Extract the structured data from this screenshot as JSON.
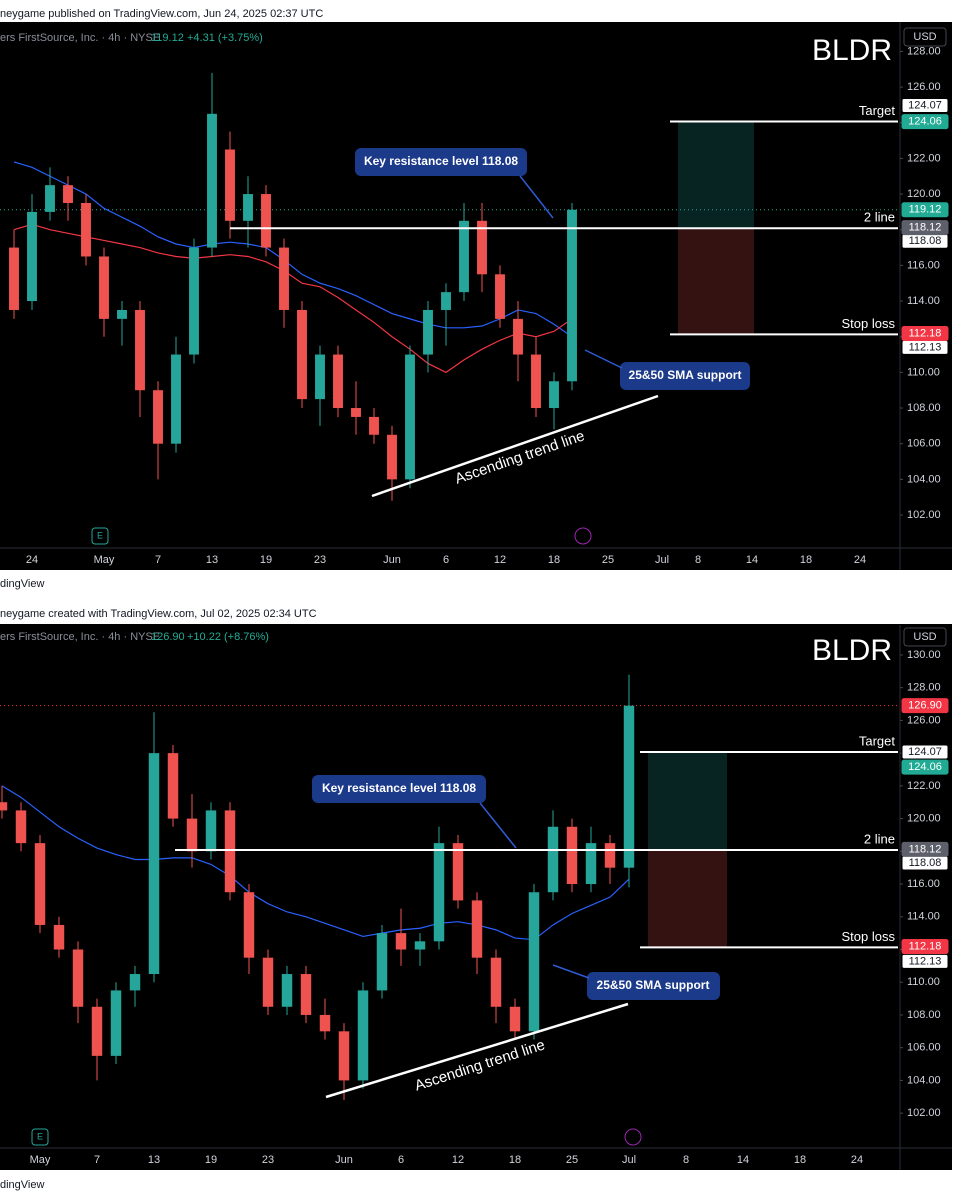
{
  "chart_data": [
    {
      "type": "candlestick",
      "header": "neygame published on TradingView.com, Jun 24, 2025 02:37 UTC",
      "symbol": "ers FirstSource, Inc. · 4h · NYSE",
      "last": 119.12,
      "change": "+4.31 (+3.75%)",
      "ticker": "BLDR",
      "currency": "USD",
      "footer": "dingView",
      "up_color": "#26a69a",
      "down_color": "#ef5350",
      "categories": [
        null,
        "24",
        null,
        null,
        null,
        "May",
        null,
        null,
        "7",
        null,
        null,
        "13",
        null,
        null,
        "19",
        null,
        null,
        "23",
        null,
        null,
        null,
        "Jun",
        null,
        null,
        "6",
        null,
        null,
        "12",
        null,
        null,
        "18",
        null,
        null,
        "25",
        null,
        null,
        "Jul",
        null,
        "8",
        null,
        null,
        "14",
        null,
        null,
        "18",
        null,
        null,
        "24",
        null
      ],
      "open": [
        117,
        114,
        119,
        120.5,
        119.5,
        116.5,
        113,
        113.5,
        109,
        106,
        111,
        117,
        122.5,
        118.5,
        120,
        117,
        113.5,
        108.5,
        111,
        108,
        107.5,
        106.5,
        104,
        111,
        113.5,
        114.5,
        118.5,
        115.5,
        113,
        111,
        108,
        109.5,
        null,
        null,
        null,
        null,
        null,
        null,
        null,
        null,
        null,
        null,
        null,
        null,
        null,
        null,
        null,
        null,
        null
      ],
      "high": [
        118,
        120,
        121.5,
        121,
        120,
        117,
        114,
        114,
        109.5,
        112,
        117.5,
        126.8,
        123.5,
        121,
        120.5,
        117.5,
        114,
        111.5,
        111.5,
        109.5,
        108,
        107,
        111.5,
        114,
        115,
        119.5,
        119.5,
        116,
        114,
        112,
        110,
        119.5,
        null,
        null,
        null,
        null,
        null,
        null,
        null,
        null,
        null,
        null,
        null,
        null,
        null,
        null,
        null,
        null,
        null
      ],
      "low": [
        113,
        113.5,
        118.5,
        118.5,
        116,
        112,
        111.5,
        107.5,
        104,
        105.5,
        110.5,
        116.5,
        117.5,
        117,
        116.5,
        112.5,
        108,
        107,
        107.5,
        106.5,
        106,
        102.8,
        103.5,
        110,
        111.5,
        114,
        114.5,
        112.5,
        109.5,
        107.5,
        106.8,
        109,
        null,
        null,
        null,
        null,
        null,
        null,
        null,
        null,
        null,
        null,
        null,
        null,
        null,
        null,
        null,
        null,
        null
      ],
      "close": [
        113.5,
        119,
        120.5,
        119.5,
        116.5,
        113,
        113.5,
        109,
        106,
        111,
        117,
        124.5,
        118.5,
        120,
        117,
        113.5,
        108.5,
        111,
        108,
        107.5,
        106.5,
        104,
        111,
        113.5,
        114.5,
        118.5,
        115.5,
        113,
        111,
        108,
        109.5,
        119.12,
        null,
        null,
        null,
        null,
        null,
        null,
        null,
        null,
        null,
        null,
        null,
        null,
        null,
        null,
        null,
        null,
        null
      ],
      "lines": [
        {
          "color": "#2962ff",
          "values": [
            121.8,
            121.5,
            121,
            120.5,
            120,
            119.2,
            118.7,
            118.2,
            117.6,
            117.2,
            117,
            117.2,
            117.3,
            117.2,
            117,
            116.3,
            115.5,
            115,
            114.7,
            114.3,
            113.8,
            113.3,
            113,
            112.7,
            112.5,
            112.5,
            112.6,
            113,
            113.5,
            113.3,
            112.7,
            112,
            null,
            null,
            null,
            null,
            null,
            null,
            null,
            null,
            null,
            null,
            null,
            null,
            null,
            null,
            null,
            null,
            null
          ]
        },
        {
          "color": "#f23645",
          "values": [
            118,
            118.3,
            118,
            117.8,
            117.6,
            117.4,
            117.2,
            117,
            116.7,
            116.5,
            116.4,
            116.5,
            116.6,
            116.5,
            116.2,
            115.7,
            115,
            114.8,
            114.2,
            113.5,
            112.8,
            112,
            111.3,
            110.5,
            110,
            110.7,
            111.3,
            111.8,
            112.2,
            112,
            112.3,
            113,
            null,
            null,
            null,
            null,
            null,
            null,
            null,
            null,
            null,
            null,
            null,
            null,
            null,
            null,
            null,
            null,
            null
          ]
        }
      ],
      "ylim": [
        100.15,
        129.65
      ],
      "yticks": [
        {
          "value": 102,
          "label": "102.00"
        },
        {
          "value": 104,
          "label": "104.00"
        },
        {
          "value": 106,
          "label": "106.00"
        },
        {
          "value": 108,
          "label": "108.00"
        },
        {
          "value": 110,
          "label": "110.00"
        },
        {
          "value": 112,
          "label": "112.00"
        },
        {
          "value": 114,
          "label": "114.00"
        },
        {
          "value": 116,
          "label": "116.00"
        },
        {
          "value": 118,
          "label": "118.00"
        },
        {
          "value": 120,
          "label": "120.00"
        },
        {
          "value": 122,
          "label": "122.00"
        },
        {
          "value": 124,
          "label": "124.00"
        },
        {
          "value": 126,
          "label": "126.00"
        },
        {
          "value": 128,
          "label": "128.00"
        }
      ],
      "levels": [
        {
          "label": "Target",
          "value": 124.07
        },
        {
          "label": "2 line",
          "value": 118.08
        },
        {
          "label": "Stop loss",
          "value": 112.13
        }
      ],
      "position": {
        "target": 124.06,
        "entry": 118.12,
        "stop": 112.18
      },
      "annotations": [
        "Key resistance level 118.08",
        "25&50 SMA support",
        "Ascending trend line"
      ]
    },
    {
      "type": "candlestick",
      "header": "neygame created with TradingView.com, Jul 02, 2025 02:34 UTC",
      "symbol": "ers FirstSource, Inc. · 4h · NYSE",
      "last": {
        "value": 126.9,
        "label": "126.90"
      },
      "change": "+10.22 (+8.76%)",
      "ticker": "BLDR",
      "currency": "USD",
      "footer": "dingView",
      "up_color": "#26a69a",
      "down_color": "#ef5350",
      "categories": [
        null,
        null,
        "May",
        null,
        null,
        "7",
        null,
        null,
        "13",
        null,
        null,
        "19",
        null,
        null,
        "23",
        null,
        null,
        null,
        "Jun",
        null,
        null,
        "6",
        null,
        null,
        "12",
        null,
        null,
        "18",
        null,
        null,
        "25",
        null,
        null,
        "Jul",
        null,
        null,
        "8",
        null,
        null,
        "14",
        null,
        null,
        "18",
        null,
        null,
        "24",
        null
      ],
      "open": [
        121,
        120.5,
        118.5,
        113.5,
        112,
        108.5,
        105.5,
        109.5,
        110.5,
        124,
        120,
        118,
        120.5,
        115.5,
        111.5,
        108.5,
        110.5,
        108,
        107,
        104,
        109.5,
        113,
        112,
        112.5,
        118.5,
        115,
        111.5,
        108.5,
        107,
        115.5,
        119.5,
        116,
        118.5,
        117,
        null,
        null,
        null,
        null,
        null,
        null,
        null,
        null,
        null,
        null,
        null,
        null,
        null
      ],
      "high": [
        122,
        121,
        119,
        114,
        112.5,
        109,
        110,
        111,
        126.5,
        124.5,
        121.5,
        121,
        121,
        116,
        112,
        111,
        111,
        109,
        107.5,
        110,
        113.5,
        114.5,
        113,
        119.5,
        119,
        115.5,
        112,
        109,
        116,
        120.5,
        120,
        119.5,
        119,
        128.8,
        null,
        null,
        null,
        null,
        null,
        null,
        null,
        null,
        null,
        null,
        null,
        null,
        null
      ],
      "low": [
        120,
        118,
        113,
        111.5,
        107.5,
        104,
        105,
        108.5,
        110,
        119.5,
        117,
        117.5,
        115,
        110.5,
        108,
        108,
        107.5,
        106.5,
        102.8,
        103.5,
        109,
        111,
        111,
        112,
        114.5,
        110.5,
        107.5,
        106.5,
        106.5,
        115,
        115.5,
        115.5,
        116,
        115.8,
        null,
        null,
        null,
        null,
        null,
        null,
        null,
        null,
        null,
        null,
        null,
        null,
        null
      ],
      "close": [
        120.5,
        118.5,
        113.5,
        112,
        108.5,
        105.5,
        109.5,
        110.5,
        124,
        120,
        118,
        120.5,
        115.5,
        111.5,
        108.5,
        110.5,
        108,
        107,
        104,
        109.5,
        113,
        112,
        112.5,
        118.5,
        115,
        111.5,
        108.5,
        107,
        115.5,
        119.5,
        116,
        118.5,
        117,
        126.9,
        null,
        null,
        null,
        null,
        null,
        null,
        null,
        null,
        null,
        null,
        null,
        null,
        null
      ],
      "lines": [
        {
          "color": "#2962ff",
          "values": [
            122,
            121.3,
            120.4,
            119.5,
            118.8,
            118.2,
            117.8,
            117.5,
            117.5,
            117.6,
            117.6,
            117.2,
            116.5,
            115.5,
            114.8,
            114.3,
            114,
            113.6,
            113.2,
            112.8,
            113,
            113.2,
            113.3,
            113.6,
            113.7,
            113.5,
            113.2,
            112.7,
            112.6,
            113.5,
            114.2,
            114.7,
            115.2,
            116.3,
            null,
            null,
            null,
            null,
            null,
            null,
            null,
            null,
            null,
            null,
            null,
            null,
            null
          ]
        }
      ],
      "ylim": [
        99.87,
        131.83
      ],
      "yticks": [
        {
          "value": 102,
          "label": "102.00"
        },
        {
          "value": 104,
          "label": "104.00"
        },
        {
          "value": 106,
          "label": "106.00"
        },
        {
          "value": 108,
          "label": "108.00"
        },
        {
          "value": 110,
          "label": "110.00"
        },
        {
          "value": 112,
          "label": "112.00"
        },
        {
          "value": 114,
          "label": "114.00"
        },
        {
          "value": 116,
          "label": "116.00"
        },
        {
          "value": 118,
          "label": "118.00"
        },
        {
          "value": 120,
          "label": "120.00"
        },
        {
          "value": 122,
          "label": "122.00"
        },
        {
          "value": 124,
          "label": "124.00"
        },
        {
          "value": 126,
          "label": "126.00"
        },
        {
          "value": 128,
          "label": "128.00"
        },
        {
          "value": 130,
          "label": "130.00"
        }
      ],
      "levels": [
        {
          "label": "Target",
          "value": 124.07
        },
        {
          "label": "2 line",
          "value": 118.08
        },
        {
          "label": "Stop loss",
          "value": 112.13
        }
      ],
      "position": {
        "target": 124.06,
        "entry": 118.12,
        "stop": 112.18
      },
      "annotations": [
        "Key resistance level 118.08",
        "25&50 SMA support",
        "Ascending trend line"
      ]
    }
  ]
}
